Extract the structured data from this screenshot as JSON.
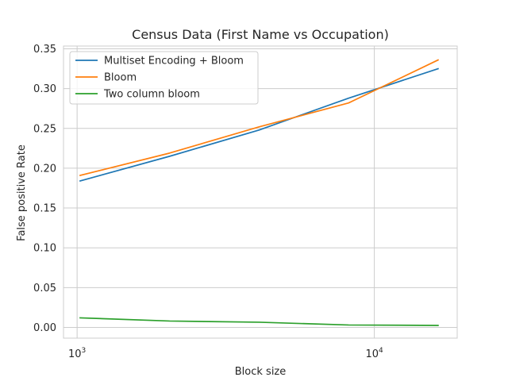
{
  "chart_data": {
    "type": "line",
    "title": "Census Data (First Name vs Occupation)",
    "xlabel": "Block size",
    "ylabel": "False positive Rate",
    "xscale": "log",
    "xlim": [
      900,
      19000
    ],
    "ylim": [
      -0.0135,
      0.3535
    ],
    "xticks": [
      {
        "value": 1000,
        "base": "10",
        "exp": "3"
      },
      {
        "value": 10000,
        "base": "10",
        "exp": "4"
      }
    ],
    "yticks": [
      {
        "value": 0.0,
        "label": "0.00"
      },
      {
        "value": 0.05,
        "label": "0.05"
      },
      {
        "value": 0.1,
        "label": "0.10"
      },
      {
        "value": 0.15,
        "label": "0.15"
      },
      {
        "value": 0.2,
        "label": "0.20"
      },
      {
        "value": 0.25,
        "label": "0.25"
      },
      {
        "value": 0.3,
        "label": "0.30"
      },
      {
        "value": 0.35,
        "label": "0.35"
      }
    ],
    "grid": true,
    "legend_position": "upper-left",
    "series": [
      {
        "name": "Multiset Encoding + Bloom",
        "color": "#1f77b4",
        "x": [
          1024,
          2048,
          4096,
          8192,
          16384
        ],
        "y": [
          0.184,
          0.215,
          0.248,
          0.288,
          0.325
        ]
      },
      {
        "name": "Bloom",
        "color": "#ff7f0e",
        "x": [
          1024,
          2048,
          4096,
          8192,
          16384
        ],
        "y": [
          0.191,
          0.219,
          0.252,
          0.282,
          0.336
        ]
      },
      {
        "name": "Two column bloom",
        "color": "#2ca02c",
        "x": [
          1024,
          2048,
          4096,
          8192,
          16384
        ],
        "y": [
          0.012,
          0.008,
          0.0065,
          0.003,
          0.0025
        ]
      }
    ]
  }
}
